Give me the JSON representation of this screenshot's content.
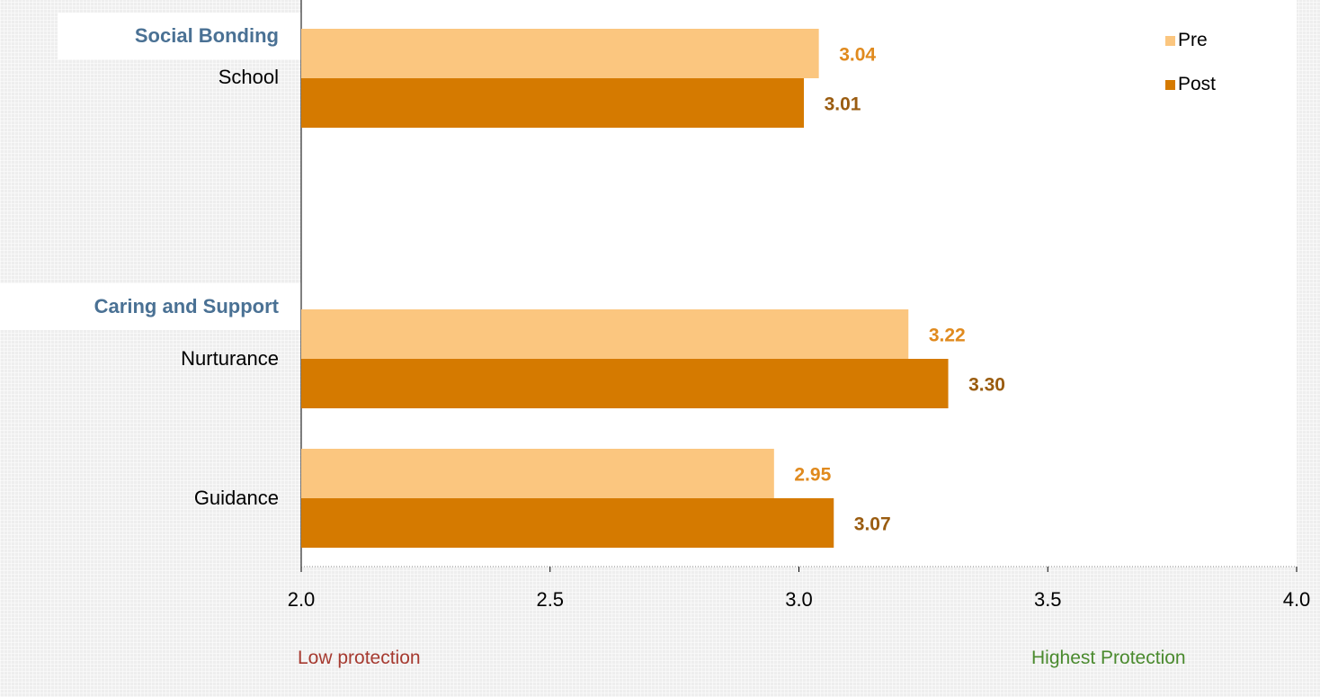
{
  "chart_data": {
    "type": "bar",
    "orientation": "horizontal",
    "groups": [
      {
        "label": "Social Bonding",
        "categories": [
          "School"
        ]
      },
      {
        "label": "Caring and Support",
        "categories": [
          "Nurturance",
          "Guidance"
        ]
      }
    ],
    "categories": [
      "School",
      "Nurturance",
      "Guidance"
    ],
    "series": [
      {
        "name": "Pre",
        "color": "#fbc67f",
        "label_color": "#e08a1e",
        "values": [
          3.04,
          3.22,
          2.95
        ],
        "labels": [
          "3.04",
          "3.22",
          "2.95"
        ]
      },
      {
        "name": "Post",
        "color": "#d57a00",
        "label_color": "#9a5c10",
        "values": [
          3.01,
          3.3,
          3.07
        ],
        "labels": [
          "3.01",
          "3.30",
          "3.07"
        ]
      }
    ],
    "xlim": [
      2.0,
      4.0
    ],
    "xticks": [
      "2.0",
      "2.5",
      "3.0",
      "3.5",
      "4.0"
    ],
    "legend_position": "top-right",
    "grid": false
  },
  "annotations": {
    "low": "Low protection",
    "high": "Highest Protection"
  },
  "colors": {
    "group_label": "#4a7194",
    "low": "#a63a30",
    "high": "#4a8a2e"
  }
}
